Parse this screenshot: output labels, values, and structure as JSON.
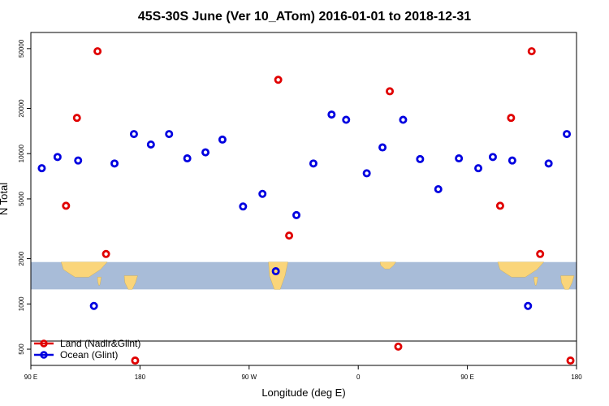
{
  "chart_data": {
    "type": "scatter",
    "title": "45S-30S June (Ver 10_ATom)   2016-01-01 to 2018-12-31",
    "xlabel": "Longitude (deg E)",
    "ylabel": "N Total",
    "x_ticks": [
      {
        "value": 90,
        "label": "90 E"
      },
      {
        "value": 180,
        "label": "180"
      },
      {
        "value": 270,
        "label": "90 W"
      },
      {
        "value": 360,
        "label": "0"
      },
      {
        "value": 450,
        "label": "90 E"
      },
      {
        "value": 540,
        "label": "180"
      }
    ],
    "xlim": [
      90,
      540
    ],
    "y_scale": "log",
    "y_ticks": [
      500,
      1000,
      2000,
      5000,
      10000,
      20000,
      50000
    ],
    "ylim": [
      390,
      64000
    ],
    "grid": false,
    "legend_position": "bottom-left",
    "series": [
      {
        "name": "Land (Nadir&Glint)",
        "color": "#e00000",
        "points": [
          {
            "x": 119,
            "y": 4500
          },
          {
            "x": 128,
            "y": 17300
          },
          {
            "x": 145,
            "y": 48000
          },
          {
            "x": 152,
            "y": 2150
          },
          {
            "x": 176,
            "y": 420
          },
          {
            "x": 294,
            "y": 31000
          },
          {
            "x": 303,
            "y": 2850
          },
          {
            "x": 386,
            "y": 26000
          },
          {
            "x": 393,
            "y": 520
          },
          {
            "x": 477,
            "y": 4500
          },
          {
            "x": 486,
            "y": 17300
          },
          {
            "x": 503,
            "y": 48000
          },
          {
            "x": 510,
            "y": 2150
          },
          {
            "x": 535,
            "y": 420
          }
        ]
      },
      {
        "name": "Ocean (Glint)",
        "color": "#0000e0",
        "points": [
          {
            "x": 99,
            "y": 8000
          },
          {
            "x": 112,
            "y": 9500
          },
          {
            "x": 129,
            "y": 9000
          },
          {
            "x": 142,
            "y": 970
          },
          {
            "x": 159,
            "y": 8600
          },
          {
            "x": 175,
            "y": 13500
          },
          {
            "x": 189,
            "y": 11500
          },
          {
            "x": 204,
            "y": 13500
          },
          {
            "x": 219,
            "y": 9300
          },
          {
            "x": 234,
            "y": 10200
          },
          {
            "x": 248,
            "y": 12400
          },
          {
            "x": 265,
            "y": 4450
          },
          {
            "x": 281,
            "y": 5400
          },
          {
            "x": 292,
            "y": 1650
          },
          {
            "x": 309,
            "y": 3900
          },
          {
            "x": 323,
            "y": 8600
          },
          {
            "x": 338,
            "y": 18200
          },
          {
            "x": 350,
            "y": 16800
          },
          {
            "x": 367,
            "y": 7400
          },
          {
            "x": 380,
            "y": 11000
          },
          {
            "x": 397,
            "y": 16800
          },
          {
            "x": 411,
            "y": 9200
          },
          {
            "x": 426,
            "y": 5800
          },
          {
            "x": 443,
            "y": 9300
          },
          {
            "x": 459,
            "y": 8000
          },
          {
            "x": 471,
            "y": 9500
          },
          {
            "x": 487,
            "y": 9000
          },
          {
            "x": 500,
            "y": 970
          },
          {
            "x": 517,
            "y": 8600
          },
          {
            "x": 532,
            "y": 13500
          }
        ]
      }
    ],
    "map_strip": {
      "y_top": 1900,
      "y_bottom": 1250,
      "ocean_color": "#a8bcd8",
      "land_color": "#fad57a"
    }
  }
}
